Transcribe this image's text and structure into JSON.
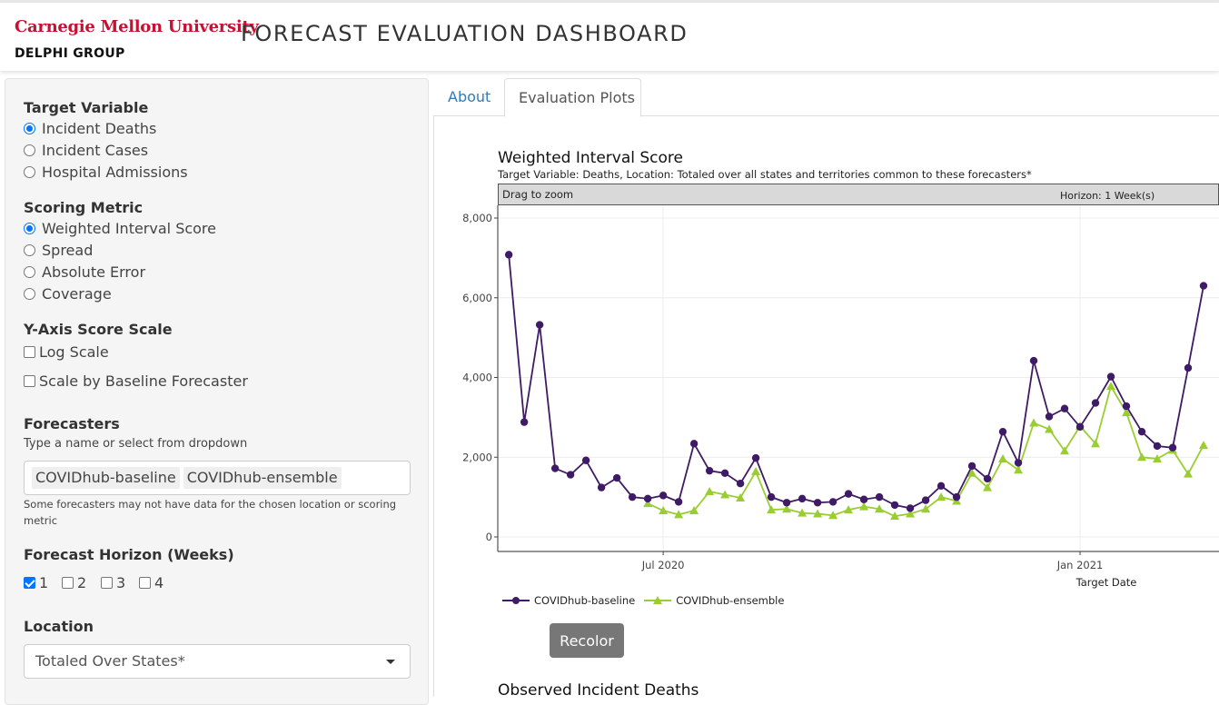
{
  "header": {
    "logo": "Carnegie Mellon University",
    "group": "DELPHI GROUP",
    "title": "FORECAST EVALUATION DASHBOARD"
  },
  "sidebar": {
    "target_variable": {
      "title": "Target Variable",
      "options": [
        "Incident Deaths",
        "Incident Cases",
        "Hospital Admissions"
      ],
      "selected": "Incident Deaths"
    },
    "scoring_metric": {
      "title": "Scoring Metric",
      "options": [
        "Weighted Interval Score",
        "Spread",
        "Absolute Error",
        "Coverage"
      ],
      "selected": "Weighted Interval Score"
    },
    "y_axis": {
      "title": "Y-Axis Score Scale",
      "log_scale": "Log Scale",
      "scale_by_baseline": "Scale by Baseline Forecaster"
    },
    "forecasters": {
      "title": "Forecasters",
      "hint": "Type a name or select from dropdown",
      "selected": [
        "COVIDhub-baseline",
        "COVIDhub-ensemble"
      ],
      "note": "Some forecasters may not have data for the chosen location or scoring metric"
    },
    "horizon": {
      "title": "Forecast Horizon (Weeks)",
      "options": [
        "1",
        "2",
        "3",
        "4"
      ],
      "checked": [
        "1"
      ]
    },
    "location": {
      "title": "Location",
      "value": "Totaled Over States*"
    }
  },
  "tabs": [
    "About",
    "Evaluation Plots"
  ],
  "active_tab": "Evaluation Plots",
  "chart": {
    "title": "Weighted Interval Score",
    "subtitle": "Target Variable: Deaths, Location: Totaled over all states and territories common to these forecasters*",
    "zoom_hint": "Drag to zoom",
    "facet_label": "Horizon: 1 Week(s)",
    "xlabel": "Target Date",
    "recolor_label": "Recolor",
    "next_title": "Observed Incident Deaths"
  },
  "colors": {
    "baseline": "#3f1a66",
    "ensemble": "#9acd32",
    "accent": "#337ab7",
    "cmu_red": "#c41230"
  },
  "chart_data": {
    "type": "line",
    "title": "Weighted Interval Score",
    "xlabel": "Target Date",
    "ylabel": "",
    "ylim": [
      0,
      8400
    ],
    "xlim": [
      "2020-04-13",
      "2021-03-06"
    ],
    "x_ticks": [
      {
        "date": "2020-06-27",
        "label": "Jul 2020"
      },
      {
        "date": "2021-01-02",
        "label": "Jan 2021"
      }
    ],
    "y_ticks": [
      0,
      2000,
      4000,
      6000,
      8000
    ],
    "y_tick_labels": [
      "0",
      "2,000",
      "4,000",
      "6,000",
      "8,000"
    ],
    "grid": true,
    "legend_position": "bottom",
    "series": [
      {
        "name": "COVIDhub-baseline",
        "marker": "circle",
        "points": [
          [
            "2020-04-18",
            7080
          ],
          [
            "2020-04-25",
            2880
          ],
          [
            "2020-05-02",
            5320
          ],
          [
            "2020-05-09",
            1720
          ],
          [
            "2020-05-16",
            1560
          ],
          [
            "2020-05-23",
            1920
          ],
          [
            "2020-05-30",
            1240
          ],
          [
            "2020-06-06",
            1480
          ],
          [
            "2020-06-13",
            1000
          ],
          [
            "2020-06-20",
            960
          ],
          [
            "2020-06-27",
            1040
          ],
          [
            "2020-07-04",
            880
          ],
          [
            "2020-07-11",
            2340
          ],
          [
            "2020-07-18",
            1660
          ],
          [
            "2020-07-25",
            1600
          ],
          [
            "2020-08-01",
            1340
          ],
          [
            "2020-08-08",
            1980
          ],
          [
            "2020-08-15",
            1000
          ],
          [
            "2020-08-22",
            860
          ],
          [
            "2020-08-29",
            960
          ],
          [
            "2020-09-05",
            860
          ],
          [
            "2020-09-12",
            880
          ],
          [
            "2020-09-19",
            1080
          ],
          [
            "2020-09-26",
            940
          ],
          [
            "2020-10-03",
            1000
          ],
          [
            "2020-10-10",
            800
          ],
          [
            "2020-10-17",
            720
          ],
          [
            "2020-10-24",
            920
          ],
          [
            "2020-10-31",
            1280
          ],
          [
            "2020-11-07",
            1000
          ],
          [
            "2020-11-14",
            1780
          ],
          [
            "2020-11-21",
            1460
          ],
          [
            "2020-11-28",
            2640
          ],
          [
            "2020-12-05",
            1860
          ],
          [
            "2020-12-12",
            4420
          ],
          [
            "2020-12-19",
            3020
          ],
          [
            "2020-12-26",
            3220
          ],
          [
            "2021-01-02",
            2760
          ],
          [
            "2021-01-09",
            3360
          ],
          [
            "2021-01-16",
            4020
          ],
          [
            "2021-01-23",
            3280
          ],
          [
            "2021-01-30",
            2640
          ],
          [
            "2021-02-06",
            2280
          ],
          [
            "2021-02-13",
            2240
          ],
          [
            "2021-02-20",
            4240
          ],
          [
            "2021-02-27",
            6300
          ]
        ]
      },
      {
        "name": "COVIDhub-ensemble",
        "marker": "triangle",
        "points": [
          [
            "2020-06-20",
            840
          ],
          [
            "2020-06-27",
            660
          ],
          [
            "2020-07-04",
            560
          ],
          [
            "2020-07-11",
            660
          ],
          [
            "2020-07-18",
            1140
          ],
          [
            "2020-07-25",
            1060
          ],
          [
            "2020-08-01",
            980
          ],
          [
            "2020-08-08",
            1640
          ],
          [
            "2020-08-15",
            680
          ],
          [
            "2020-08-22",
            700
          ],
          [
            "2020-08-29",
            600
          ],
          [
            "2020-09-05",
            580
          ],
          [
            "2020-09-12",
            540
          ],
          [
            "2020-09-19",
            680
          ],
          [
            "2020-09-26",
            760
          ],
          [
            "2020-10-03",
            700
          ],
          [
            "2020-10-10",
            520
          ],
          [
            "2020-10-17",
            580
          ],
          [
            "2020-10-24",
            700
          ],
          [
            "2020-10-31",
            1000
          ],
          [
            "2020-11-07",
            900
          ],
          [
            "2020-11-14",
            1600
          ],
          [
            "2020-11-21",
            1240
          ],
          [
            "2020-11-28",
            1960
          ],
          [
            "2020-12-05",
            1680
          ],
          [
            "2020-12-12",
            2860
          ],
          [
            "2020-12-19",
            2700
          ],
          [
            "2020-12-26",
            2160
          ],
          [
            "2021-01-02",
            2780
          ],
          [
            "2021-01-09",
            2340
          ],
          [
            "2021-01-16",
            3780
          ],
          [
            "2021-01-23",
            3120
          ],
          [
            "2021-01-30",
            2000
          ],
          [
            "2021-02-06",
            1960
          ],
          [
            "2021-02-13",
            2180
          ],
          [
            "2021-02-20",
            1580
          ],
          [
            "2021-02-27",
            2300
          ]
        ]
      }
    ]
  }
}
